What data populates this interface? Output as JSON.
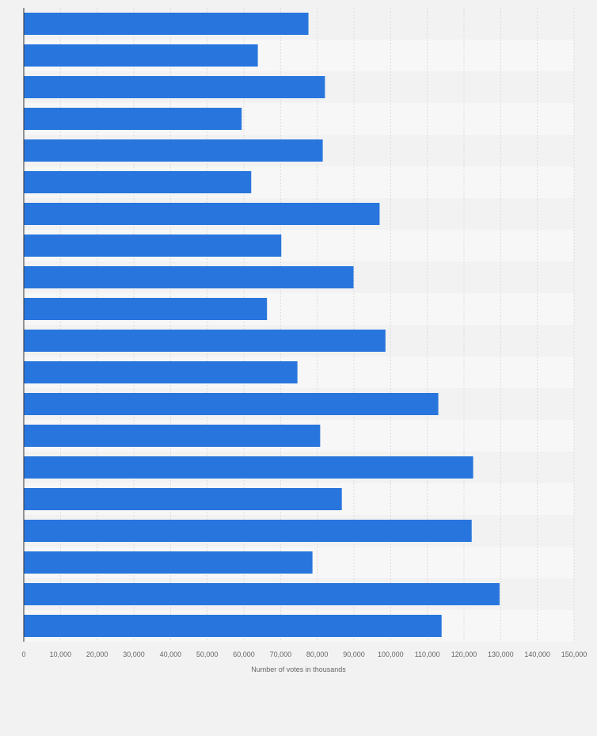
{
  "chart_data": {
    "type": "bar",
    "orientation": "horizontal",
    "title": "",
    "xlabel": "Number of votes in thousands",
    "ylabel": "",
    "xlim": [
      0,
      150000
    ],
    "xticks": [
      0,
      10000,
      20000,
      30000,
      40000,
      50000,
      60000,
      70000,
      80000,
      90000,
      100000,
      110000,
      120000,
      130000,
      140000,
      150000
    ],
    "xtick_labels": [
      "0",
      "10,000",
      "20,000",
      "30,000",
      "40,000",
      "50,000",
      "60,000",
      "70,000",
      "80,000",
      "90,000",
      "100,000",
      "110,000",
      "120,000",
      "130,000",
      "140,000",
      "150,000"
    ],
    "grid": true,
    "bar_color": "#2876dd",
    "values": [
      77600,
      63800,
      82100,
      59400,
      81500,
      62000,
      97000,
      70200,
      89900,
      66300,
      98600,
      74600,
      113000,
      80800,
      122500,
      86700,
      122100,
      78700,
      129700,
      113900
    ]
  }
}
